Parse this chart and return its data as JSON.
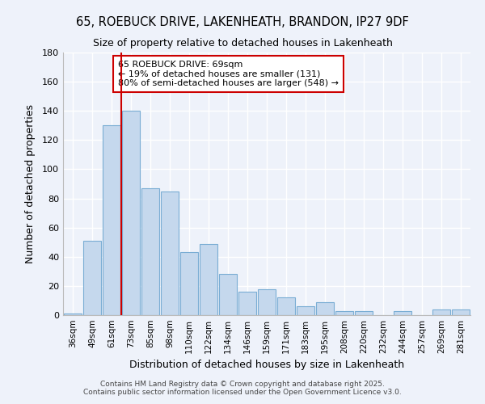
{
  "title": "65, ROEBUCK DRIVE, LAKENHEATH, BRANDON, IP27 9DF",
  "subtitle": "Size of property relative to detached houses in Lakenheath",
  "xlabel": "Distribution of detached houses by size in Lakenheath",
  "ylabel": "Number of detached properties",
  "categories": [
    "36sqm",
    "49sqm",
    "61sqm",
    "73sqm",
    "85sqm",
    "98sqm",
    "110sqm",
    "122sqm",
    "134sqm",
    "146sqm",
    "159sqm",
    "171sqm",
    "183sqm",
    "195sqm",
    "208sqm",
    "220sqm",
    "232sqm",
    "244sqm",
    "257sqm",
    "269sqm",
    "281sqm"
  ],
  "values": [
    1,
    51,
    130,
    140,
    87,
    85,
    43,
    49,
    28,
    16,
    18,
    12,
    6,
    9,
    3,
    3,
    0,
    3,
    0,
    4,
    4
  ],
  "bar_color": "#c5d8ed",
  "bar_edge_color": "#7aadd4",
  "background_color": "#eef2fa",
  "grid_color": "#ffffff",
  "ylim": [
    0,
    180
  ],
  "yticks": [
    0,
    20,
    40,
    60,
    80,
    100,
    120,
    140,
    160,
    180
  ],
  "property_line_x": 2.5,
  "annotation_text": "65 ROEBUCK DRIVE: 69sqm\n← 19% of detached houses are smaller (131)\n80% of semi-detached houses are larger (548) →",
  "annotation_box_color": "#ffffff",
  "annotation_box_edge_color": "#cc0000",
  "property_line_color": "#cc0000",
  "footer1": "Contains HM Land Registry data © Crown copyright and database right 2025.",
  "footer2": "Contains public sector information licensed under the Open Government Licence v3.0."
}
